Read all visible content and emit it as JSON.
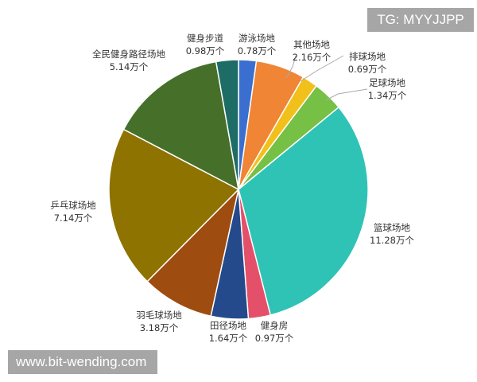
{
  "watermarks": {
    "top_right": "TG: MYYJJPP",
    "bottom_left": "www.bit-wending.com"
  },
  "chart_data": {
    "type": "pie",
    "unit": "万个",
    "start": "top",
    "direction": "clockwise",
    "slices": [
      {
        "name": "游泳场地",
        "value": 0.78,
        "label": "0.78万个",
        "color": "#3a6fd0"
      },
      {
        "name": "其他场地",
        "value": 2.16,
        "label": "2.16万个",
        "color": "#ef8535"
      },
      {
        "name": "排球场地",
        "value": 0.69,
        "label": "0.69万个",
        "color": "#f2c01a"
      },
      {
        "name": "足球场地",
        "value": 1.34,
        "label": "1.34万个",
        "color": "#76c045"
      },
      {
        "name": "篮球场地",
        "value": 11.28,
        "label": "11.28万个",
        "color": "#2fc3b5"
      },
      {
        "name": "健身房",
        "value": 0.97,
        "label": "0.97万个",
        "color": "#e4506a"
      },
      {
        "name": "田径场地",
        "value": 1.64,
        "label": "1.64万个",
        "color": "#244a8c"
      },
      {
        "name": "羽毛球场地",
        "value": 3.18,
        "label": "3.18万个",
        "color": "#9e4c10"
      },
      {
        "name": "乒乓球场地",
        "value": 7.14,
        "label": "7.14万个",
        "color": "#8e7300"
      },
      {
        "name": "全民健身路径场地",
        "value": 5.14,
        "label": "5.14万个",
        "color": "#46702a"
      },
      {
        "name": "健身步道",
        "value": 0.98,
        "label": "0.98万个",
        "color": "#1e6c66"
      }
    ]
  }
}
